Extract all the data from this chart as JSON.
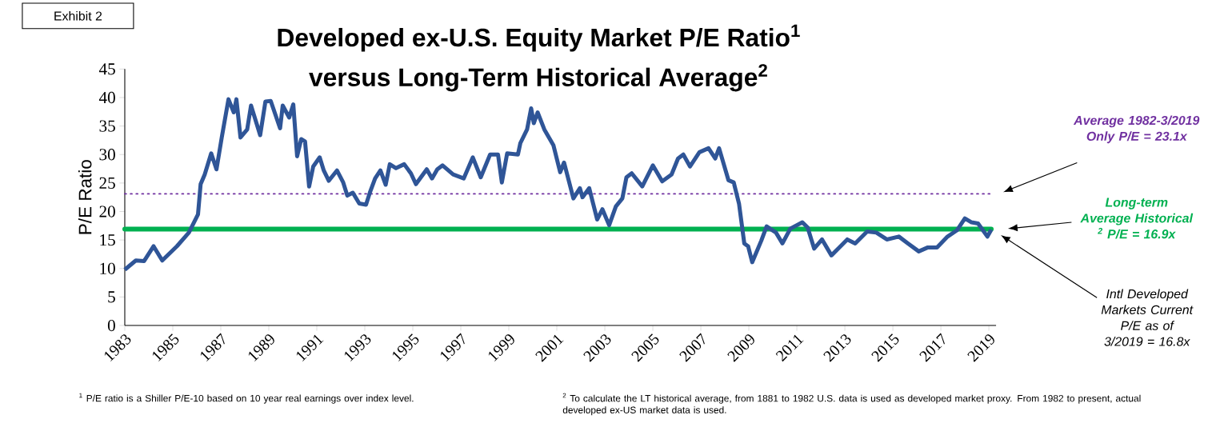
{
  "chart_data": {
    "type": "line",
    "title": "Developed ex-U.S. Equity Market P/E Ratio$^{1}$",
    "subtitle": "versus Long-Term Historical Average$^{2}$",
    "ylabel": "P/E Ratio",
    "x": [
      1983.0,
      1983.46,
      1983.8,
      1984.2,
      1984.56,
      1985.17,
      1985.67,
      1986.05,
      1986.16,
      1986.33,
      1986.6,
      1986.82,
      1987.04,
      1987.32,
      1987.54,
      1987.65,
      1987.82,
      1988.1,
      1988.26,
      1988.64,
      1988.86,
      1989.08,
      1989.47,
      1989.58,
      1989.85,
      1990.02,
      1990.18,
      1990.35,
      1990.51,
      1990.68,
      1990.85,
      1991.12,
      1991.29,
      1991.5,
      1991.84,
      1992.1,
      1992.27,
      1992.5,
      1992.77,
      1993.05,
      1993.21,
      1993.43,
      1993.65,
      1993.87,
      1994.04,
      1994.3,
      1994.64,
      1994.92,
      1995.13,
      1995.58,
      1995.8,
      1996.02,
      1996.24,
      1996.68,
      1997.12,
      1997.5,
      1997.83,
      1998.22,
      1998.55,
      1998.71,
      1998.93,
      1999.38,
      1999.48,
      1999.76,
      1999.93,
      2000.04,
      2000.2,
      2000.48,
      2000.86,
      2001.14,
      2001.3,
      2001.69,
      2001.96,
      2002.07,
      2002.35,
      2002.68,
      2002.9,
      2003.18,
      2003.46,
      2003.73,
      2003.9,
      2004.12,
      2004.56,
      2005.0,
      2005.39,
      2005.78,
      2006.05,
      2006.27,
      2006.55,
      2006.94,
      2007.32,
      2007.6,
      2007.76,
      2008.15,
      2008.37,
      2008.59,
      2008.81,
      2008.97,
      2009.14,
      2009.52,
      2009.74,
      2010.13,
      2010.4,
      2010.73,
      2011.23,
      2011.45,
      2011.72,
      2012.05,
      2012.44,
      2012.77,
      2013.1,
      2013.43,
      2013.93,
      2014.31,
      2014.75,
      2015.25,
      2015.63,
      2016.08,
      2016.46,
      2016.84,
      2017.28,
      2017.67,
      2018.0,
      2018.28,
      2018.55,
      2018.94,
      2019.1
    ],
    "series": [
      {
        "color": "#2f5597",
        "values": [
          9.8,
          11.4,
          11.3,
          13.9,
          11.4,
          13.9,
          16.3,
          19.5,
          24.8,
          26.5,
          30.2,
          27.4,
          33.0,
          39.7,
          37.4,
          39.7,
          33.0,
          34.4,
          38.6,
          33.4,
          39.3,
          39.4,
          34.6,
          38.6,
          36.5,
          38.8,
          29.7,
          32.7,
          32.3,
          24.4,
          27.9,
          29.5,
          27.2,
          25.4,
          27.2,
          25.1,
          22.8,
          23.3,
          21.4,
          21.2,
          23.3,
          25.8,
          27.2,
          24.7,
          28.3,
          27.6,
          28.3,
          26.7,
          24.8,
          27.4,
          25.8,
          27.4,
          28.1,
          26.5,
          25.8,
          29.5,
          26.0,
          30.0,
          30.0,
          25.1,
          30.2,
          30.0,
          32.0,
          34.4,
          38.1,
          35.5,
          37.4,
          34.4,
          31.6,
          26.9,
          28.6,
          22.3,
          24.1,
          22.5,
          24.1,
          18.6,
          20.4,
          17.6,
          20.9,
          22.3,
          26.0,
          26.7,
          24.4,
          28.1,
          25.3,
          26.5,
          29.3,
          30.0,
          27.9,
          30.4,
          31.1,
          29.3,
          31.1,
          25.5,
          25.1,
          21.4,
          14.4,
          13.9,
          11.1,
          14.9,
          17.4,
          16.3,
          14.4,
          17.0,
          18.1,
          17.2,
          13.5,
          15.1,
          12.3,
          13.7,
          15.1,
          14.4,
          16.5,
          16.3,
          15.1,
          15.6,
          14.4,
          13.0,
          13.7,
          13.7,
          15.6,
          16.7,
          18.8,
          18.1,
          17.9,
          15.6,
          16.8
        ]
      }
    ],
    "xlim": [
      1983,
      2019.3
    ],
    "xticks": [
      1983,
      1985,
      1987,
      1989,
      1991,
      1993,
      1995,
      1997,
      1999,
      2001,
      2003,
      2005,
      2007,
      2009,
      2011,
      2013,
      2015,
      2017,
      2019
    ],
    "ylim": [
      0,
      45
    ],
    "yticks": [
      0,
      5,
      10,
      15,
      20,
      25,
      30,
      35,
      40,
      45
    ],
    "ref_lines": [
      {
        "axis": "y",
        "value": 23.1,
        "label": "Average 1982-3/2019 Only P/E = 23.1x",
        "color": "#7030a0",
        "line_style": "dotted"
      },
      {
        "axis": "y",
        "value": 16.9,
        "label": "Long-term Average Historical $^{2}$ P/E = 16.9x",
        "color": "#00b050",
        "line_style": "solid"
      }
    ],
    "annotations": [
      "Exhibit 2",
      "Intl Developed Markets Current P/E as of 3/2019 = 16.8x",
      "$^{1}$ P/E ratio is a Shiller P/E-10 based on 10 year real earnings over index level.",
      "$^{2}$ To calculate the LT historical average, from 1881 to 1982 U.S. data is used as developed market proxy. From 1982 to present, actual developed ex-US market data is used."
    ]
  }
}
